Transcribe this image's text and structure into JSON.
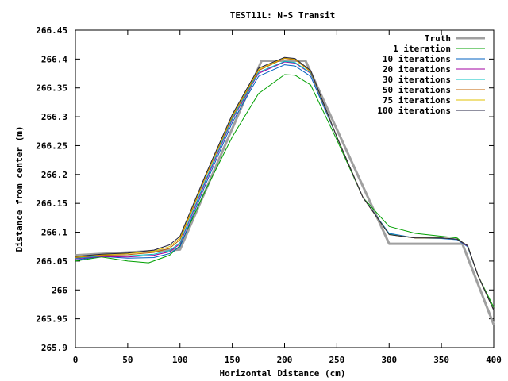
{
  "chart_data": {
    "type": "line",
    "title": "TEST11L: N-S Transit",
    "xlabel": "Horizontal Distance (cm)",
    "ylabel": "Distance from center (m)",
    "xlim": [
      0,
      400
    ],
    "ylim": [
      265.9,
      266.45
    ],
    "grid": false,
    "legend_position": "top-right",
    "x_ticks": [
      0,
      50,
      100,
      150,
      200,
      250,
      300,
      350,
      400
    ],
    "y_ticks": [
      265.9,
      265.95,
      266,
      266.05,
      266.1,
      266.15,
      266.2,
      266.25,
      266.3,
      266.35,
      266.4,
      266.45
    ],
    "y_tick_labels": [
      "265.9",
      "265.95",
      "266",
      "266.05",
      "266.1",
      "266.15",
      "266.2",
      "266.25",
      "266.3",
      "266.35",
      "266.4",
      "266.45"
    ],
    "series": [
      {
        "name": "Truth",
        "color": "#a0a0a0",
        "x": [
          0,
          100,
          178,
          220,
          300,
          370,
          400
        ],
        "y": [
          266.06,
          266.07,
          266.397,
          266.397,
          266.08,
          266.08,
          265.94
        ]
      },
      {
        "name": "1 iteration",
        "color": "#00a000",
        "x": [
          0,
          25,
          50,
          70,
          90,
          100,
          125,
          150,
          175,
          200,
          210,
          225,
          250,
          275,
          300,
          325,
          350,
          365,
          375,
          385,
          400
        ],
        "y": [
          266.05,
          266.057,
          266.05,
          266.047,
          266.06,
          266.077,
          266.175,
          266.265,
          266.34,
          266.373,
          266.372,
          266.355,
          266.26,
          266.16,
          266.11,
          266.098,
          266.093,
          266.09,
          266.075,
          266.025,
          265.97
        ]
      },
      {
        "name": "10 iterations",
        "color": "#0060c0",
        "x": [
          0,
          25,
          50,
          75,
          90,
          100,
          125,
          150,
          175,
          200,
          210,
          225,
          250,
          275,
          300,
          325,
          350,
          365,
          375,
          385,
          400
        ],
        "y": [
          266.052,
          266.058,
          266.055,
          266.056,
          266.063,
          266.075,
          266.185,
          266.29,
          266.37,
          266.39,
          266.388,
          266.37,
          266.265,
          266.16,
          266.098,
          266.09,
          266.089,
          266.087,
          266.075,
          266.025,
          265.965
        ]
      },
      {
        "name": "20 iterations",
        "color": "#a000a0",
        "x": [
          0,
          25,
          50,
          75,
          90,
          100,
          125,
          150,
          175,
          200,
          210,
          225,
          250,
          275,
          300,
          325,
          350,
          365,
          375,
          385,
          400
        ],
        "y": [
          266.054,
          266.058,
          266.057,
          266.06,
          266.066,
          266.08,
          266.19,
          266.295,
          266.375,
          266.395,
          266.393,
          266.375,
          266.265,
          266.16,
          266.097,
          266.09,
          266.09,
          266.088,
          266.076,
          266.025,
          265.965
        ]
      },
      {
        "name": "30 iterations",
        "color": "#00c0c0",
        "x": [
          0,
          25,
          50,
          75,
          90,
          100,
          125,
          150,
          175,
          200,
          210,
          225,
          250,
          275,
          300,
          325,
          350,
          365,
          375,
          385,
          400
        ],
        "y": [
          266.055,
          266.059,
          266.059,
          266.062,
          266.068,
          266.082,
          266.193,
          266.297,
          266.377,
          266.396,
          266.394,
          266.376,
          266.265,
          266.16,
          266.097,
          266.09,
          266.09,
          266.088,
          266.077,
          266.025,
          265.965
        ]
      },
      {
        "name": "50 iterations",
        "color": "#c06000",
        "x": [
          0,
          25,
          50,
          75,
          90,
          100,
          125,
          150,
          175,
          200,
          210,
          225,
          250,
          275,
          300,
          325,
          350,
          365,
          375,
          385,
          400
        ],
        "y": [
          266.056,
          266.06,
          266.061,
          266.065,
          266.072,
          266.087,
          266.198,
          266.3,
          266.38,
          266.401,
          266.399,
          266.378,
          266.265,
          266.16,
          266.096,
          266.09,
          266.09,
          266.088,
          266.077,
          266.025,
          265.965
        ]
      },
      {
        "name": "75 iterations",
        "color": "#e0c000",
        "x": [
          0,
          25,
          50,
          75,
          90,
          100,
          125,
          150,
          175,
          200,
          210,
          225,
          250,
          275,
          300,
          325,
          350,
          365,
          375,
          385,
          400
        ],
        "y": [
          266.057,
          266.061,
          266.063,
          266.067,
          266.075,
          266.09,
          266.2,
          266.302,
          266.382,
          266.402,
          266.4,
          266.379,
          266.265,
          266.16,
          266.096,
          266.09,
          266.09,
          266.088,
          266.077,
          266.025,
          265.965
        ]
      },
      {
        "name": "100 iterations",
        "color": "#202040",
        "x": [
          0,
          25,
          50,
          75,
          90,
          100,
          125,
          150,
          175,
          200,
          210,
          225,
          250,
          275,
          300,
          325,
          350,
          365,
          375,
          385,
          400
        ],
        "y": [
          266.058,
          266.062,
          266.064,
          266.069,
          266.078,
          266.093,
          266.202,
          266.304,
          266.384,
          266.403,
          266.401,
          266.38,
          266.265,
          266.16,
          266.096,
          266.09,
          266.09,
          266.088,
          266.077,
          266.025,
          265.965
        ]
      }
    ]
  }
}
